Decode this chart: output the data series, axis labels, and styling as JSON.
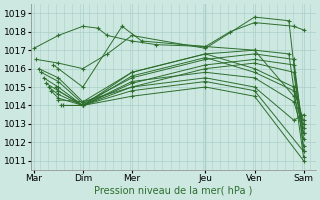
{
  "background_color": "#cce8e0",
  "grid_color": "#aacfc8",
  "line_color": "#2d6e2d",
  "marker_color": "#2d6e2d",
  "xlabel_text": "Pression niveau de la mer( hPa )",
  "xtick_labels": [
    "Mar",
    "Dim",
    "Mer",
    "Jeu",
    "Ven",
    "Sam"
  ],
  "xtick_positions": [
    0,
    1,
    2,
    3.5,
    4.5,
    5.5
  ],
  "ylim": [
    1010.5,
    1019.5
  ],
  "yticks": [
    1011,
    1012,
    1013,
    1014,
    1015,
    1016,
    1017,
    1018,
    1019
  ],
  "xlim": [
    -0.05,
    5.75
  ],
  "lines": [
    {
      "x": [
        0.0,
        0.5,
        1.0,
        1.3,
        1.5,
        2.0,
        2.5,
        3.5,
        4.0,
        4.5,
        5.3,
        5.5
      ],
      "y": [
        1017.1,
        1017.8,
        1018.3,
        1018.2,
        1017.8,
        1017.5,
        1017.3,
        1017.2,
        1018.0,
        1018.5,
        1018.3,
        1018.1
      ]
    },
    {
      "x": [
        0.05,
        0.5,
        1.0,
        1.5,
        2.0,
        3.5,
        4.5,
        5.2,
        5.5
      ],
      "y": [
        1016.5,
        1016.3,
        1016.0,
        1016.8,
        1017.8,
        1017.1,
        1018.8,
        1018.6,
        1011.5
      ]
    },
    {
      "x": [
        0.1,
        0.5,
        1.0,
        2.0,
        3.5,
        4.5,
        5.2,
        5.5
      ],
      "y": [
        1016.0,
        1015.5,
        1014.2,
        1015.8,
        1016.8,
        1017.0,
        1016.8,
        1011.2
      ]
    },
    {
      "x": [
        0.15,
        0.5,
        1.0,
        2.0,
        3.5,
        4.5,
        5.3,
        5.5
      ],
      "y": [
        1015.8,
        1015.3,
        1014.1,
        1015.5,
        1016.5,
        1016.8,
        1016.5,
        1012.2
      ]
    },
    {
      "x": [
        0.2,
        0.5,
        1.0,
        2.0,
        3.5,
        4.5,
        5.3,
        5.5
      ],
      "y": [
        1015.5,
        1015.0,
        1014.0,
        1015.2,
        1016.2,
        1016.5,
        1016.2,
        1012.5
      ]
    },
    {
      "x": [
        0.25,
        0.5,
        1.0,
        2.0,
        3.5,
        4.5,
        5.3,
        5.5
      ],
      "y": [
        1015.2,
        1014.8,
        1014.0,
        1015.0,
        1016.0,
        1016.3,
        1015.8,
        1011.8
      ]
    },
    {
      "x": [
        0.3,
        0.5,
        1.0,
        2.0,
        3.5,
        4.5,
        5.3,
        5.5
      ],
      "y": [
        1015.0,
        1014.6,
        1014.0,
        1015.8,
        1016.8,
        1016.0,
        1015.0,
        1013.0
      ]
    },
    {
      "x": [
        0.35,
        0.5,
        1.0,
        2.0,
        3.5,
        4.5,
        5.3,
        5.5
      ],
      "y": [
        1014.8,
        1014.4,
        1014.0,
        1015.6,
        1016.6,
        1015.8,
        1014.8,
        1013.2
      ]
    },
    {
      "x": [
        0.4,
        0.5,
        1.0,
        1.8,
        2.2,
        3.5,
        4.5,
        5.3,
        5.5
      ],
      "y": [
        1016.2,
        1016.0,
        1015.0,
        1018.3,
        1017.5,
        1017.2,
        1017.0,
        1014.5,
        1012.8
      ]
    },
    {
      "x": [
        0.45,
        0.5,
        1.0,
        2.0,
        3.5,
        4.5,
        5.3,
        5.5
      ],
      "y": [
        1015.0,
        1014.8,
        1014.0,
        1015.3,
        1015.8,
        1015.5,
        1014.2,
        1012.5
      ]
    },
    {
      "x": [
        0.5,
        1.0,
        2.0,
        3.5,
        4.5,
        5.3,
        5.5
      ],
      "y": [
        1014.3,
        1014.2,
        1015.0,
        1015.5,
        1015.0,
        1013.2,
        1013.5
      ]
    },
    {
      "x": [
        0.55,
        1.0,
        2.0,
        3.5,
        4.5,
        5.5
      ],
      "y": [
        1014.0,
        1014.0,
        1014.8,
        1015.3,
        1014.8,
        1011.5
      ]
    },
    {
      "x": [
        0.6,
        1.0,
        2.0,
        3.5,
        4.5,
        5.5
      ],
      "y": [
        1014.0,
        1014.0,
        1014.5,
        1015.0,
        1014.5,
        1011.0
      ]
    }
  ],
  "vline_x": 3.5,
  "marker": "+"
}
